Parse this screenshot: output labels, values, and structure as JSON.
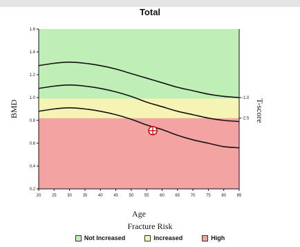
{
  "chart_data": {
    "type": "line",
    "title": "Total",
    "xlabel": "Age",
    "ylabel": "BMD",
    "right_axis_label": "T-score",
    "xlim": [
      20,
      85
    ],
    "ylim": [
      0.2,
      1.6
    ],
    "x_ticks": [
      "20",
      "25",
      "30",
      "35",
      "40",
      "45",
      "50",
      "55",
      "60",
      "65",
      "70",
      "75",
      "80",
      "85"
    ],
    "y_ticks": [
      "0.2",
      "0.4",
      "0.6",
      "0.8",
      "1.0",
      "1.2",
      "1.4",
      "1.6"
    ],
    "zones": [
      {
        "name": "High",
        "from": 0.2,
        "to": 0.82,
        "color": "#f4a3a3"
      },
      {
        "name": "Increased",
        "from": 0.82,
        "to": 0.99,
        "color": "#f6f4b4"
      },
      {
        "name": "Not Increased",
        "from": 0.99,
        "to": 1.6,
        "color": "#bfefb6"
      }
    ],
    "series": [
      {
        "x": [
          20,
          25,
          30,
          35,
          40,
          45,
          50,
          55,
          60,
          65,
          70,
          75,
          80,
          85
        ],
        "values": [
          1.28,
          1.3,
          1.31,
          1.3,
          1.28,
          1.25,
          1.21,
          1.17,
          1.13,
          1.09,
          1.06,
          1.03,
          1.01,
          1.0
        ]
      },
      {
        "x": [
          20,
          25,
          30,
          35,
          40,
          45,
          50,
          55,
          60,
          65,
          70,
          75,
          80,
          85
        ],
        "values": [
          1.08,
          1.1,
          1.11,
          1.1,
          1.08,
          1.05,
          1.01,
          0.96,
          0.92,
          0.88,
          0.85,
          0.82,
          0.8,
          0.79
        ]
      },
      {
        "x": [
          20,
          25,
          30,
          35,
          40,
          45,
          50,
          55,
          60,
          65,
          70,
          75,
          80,
          85
        ],
        "values": [
          0.88,
          0.9,
          0.91,
          0.9,
          0.88,
          0.85,
          0.81,
          0.76,
          0.72,
          0.67,
          0.63,
          0.6,
          0.57,
          0.56
        ]
      }
    ],
    "right_labels": [
      {
        "text": "-1.0",
        "y": 1.0
      },
      {
        "text": "-2.5",
        "y": 0.82
      }
    ],
    "patient_point": {
      "x": 57,
      "y": 0.71
    },
    "legend_title": "Fracture Risk",
    "legend": [
      {
        "label": "Not Increased",
        "color": "#bfefb6"
      },
      {
        "label": "Increased",
        "color": "#f6f4b4"
      },
      {
        "label": "High",
        "color": "#f4a3a3"
      }
    ]
  }
}
